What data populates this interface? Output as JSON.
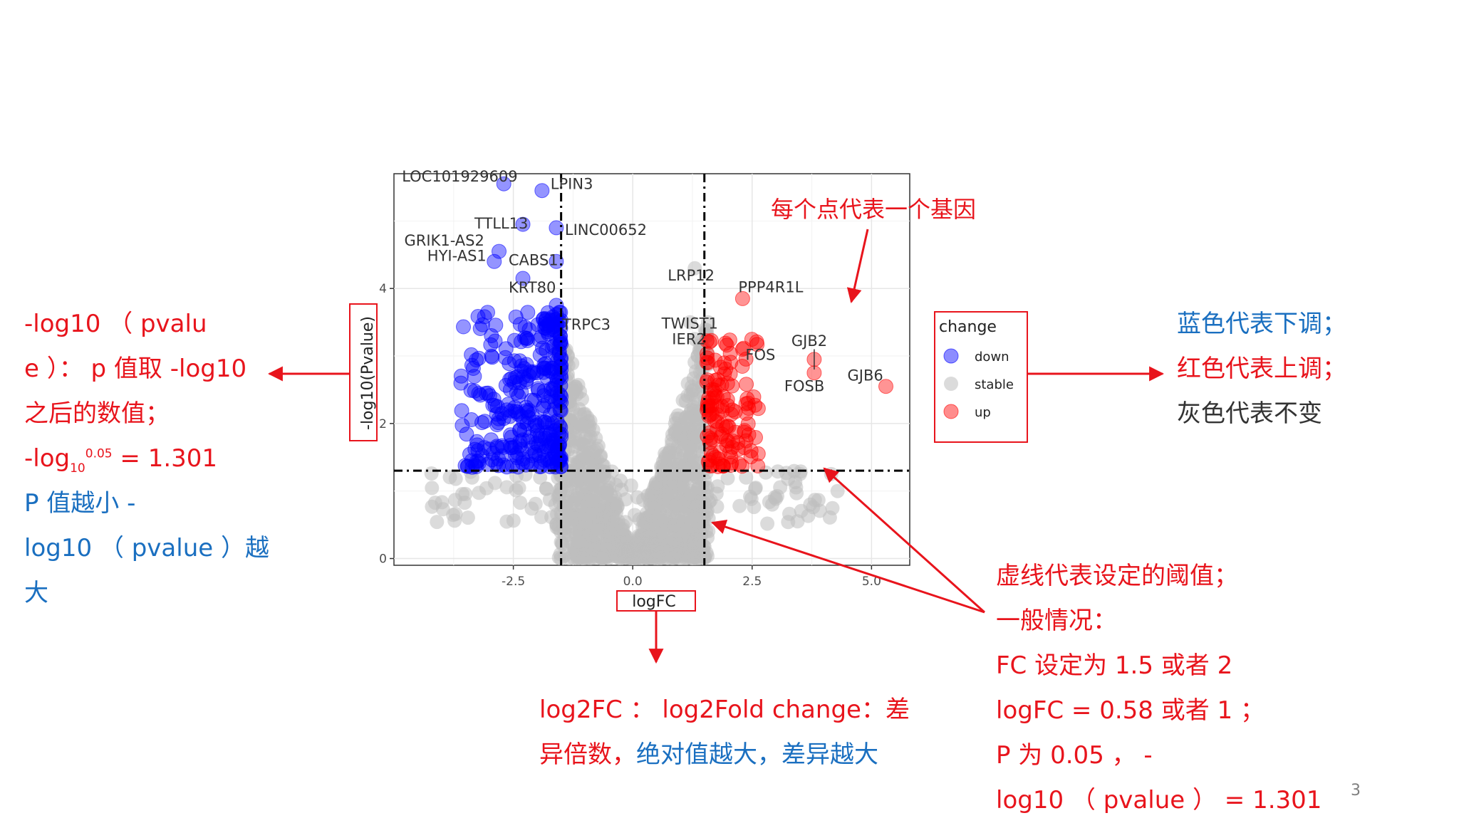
{
  "left_note": {
    "line1": "-log10 （ pvalu",
    "line2": "e ）： p 值取 -log10",
    "line3": "之后的数值；",
    "line4_prefix": "-log",
    "line4_sub": "10",
    "line4_sup": "0.05",
    "line4_suffix": " = 1.301",
    "line5": "P 值越小 -",
    "line6": "log10 （ pvalue ）越",
    "line7": "大"
  },
  "top_note": "每个点代表一个基因",
  "legend_note": {
    "line1": "蓝色代表下调；",
    "line2": "红色代表上调；",
    "line3": "灰色代表不变"
  },
  "bottom_note": {
    "line1": "log2FC ： log2Fold change：差",
    "line2_a": "异倍数，",
    "line2_b": "绝对值越大，差异越大"
  },
  "threshold_note": {
    "line1": "虚线代表设定的阈值；",
    "line2": "一般情况：",
    "line3": "FC 设定为 1.5 或者 2",
    "line4": "logFC = 0.58 或者 1 ；",
    "line5": "P 为 0.05 ， -",
    "line6": "log10 （ pvalue ） = 1.301"
  },
  "page_number": "3",
  "colors": {
    "annotation_red": "#e8141c",
    "annotation_blue": "#1a6fc0",
    "down": "#0000ff",
    "stable": "#bebebe",
    "up": "#ff0000"
  },
  "chart_data": {
    "type": "scatter",
    "title": "",
    "xlabel": "logFC",
    "ylabel": "-log10(Pvalue)",
    "xlim": [
      -5.0,
      5.8
    ],
    "ylim": [
      -0.1,
      5.7
    ],
    "x_ticks": [
      "-2.5",
      "0.0",
      "2.5",
      "5.0"
    ],
    "x_tick_values": [
      -2.5,
      0.0,
      2.5,
      5.0
    ],
    "y_ticks": [
      "0",
      "2",
      "4"
    ],
    "y_tick_values": [
      0,
      2,
      4
    ],
    "grid": true,
    "thresholds": {
      "logFC": [
        -1.5,
        1.5
      ],
      "neg_log10_p": 1.301
    },
    "legend": {
      "title": "change",
      "items": [
        "down",
        "stable",
        "up"
      ],
      "placement": "right"
    },
    "labeled_genes": [
      {
        "name": "LOC101929609",
        "x": -2.7,
        "y": 5.55,
        "change": "down"
      },
      {
        "name": "LPIN3",
        "x": -1.9,
        "y": 5.45,
        "change": "down"
      },
      {
        "name": "TTLL13",
        "x": -2.3,
        "y": 4.95,
        "change": "down"
      },
      {
        "name": "LINC00652",
        "x": -1.6,
        "y": 4.9,
        "change": "down"
      },
      {
        "name": "GRIK1-AS2",
        "x": -2.8,
        "y": 4.55,
        "change": "down"
      },
      {
        "name": "CABS1",
        "x": -1.6,
        "y": 4.4,
        "change": "down"
      },
      {
        "name": "HYI-AS1",
        "x": -2.9,
        "y": 4.4,
        "change": "down"
      },
      {
        "name": "KRT80",
        "x": -2.3,
        "y": 4.15,
        "change": "down"
      },
      {
        "name": "TRPC3",
        "x": -1.6,
        "y": 3.75,
        "change": "down"
      },
      {
        "name": "LRP12",
        "x": 1.3,
        "y": 4.3,
        "change": "stable"
      },
      {
        "name": "TWIST1",
        "x": 1.2,
        "y": 3.5,
        "change": "stable"
      },
      {
        "name": "PPP4R1L",
        "x": 2.3,
        "y": 3.85,
        "change": "up"
      },
      {
        "name": "IER2",
        "x": 1.3,
        "y": 3.25,
        "change": "stable"
      },
      {
        "name": "FOS",
        "x": 2.3,
        "y": 3.1,
        "change": "up"
      },
      {
        "name": "GJB2",
        "x": 3.8,
        "y": 2.95,
        "change": "up"
      },
      {
        "name": "FOSB",
        "x": 3.8,
        "y": 2.75,
        "change": "up"
      },
      {
        "name": "GJB6",
        "x": 5.3,
        "y": 2.55,
        "change": "up"
      }
    ]
  }
}
